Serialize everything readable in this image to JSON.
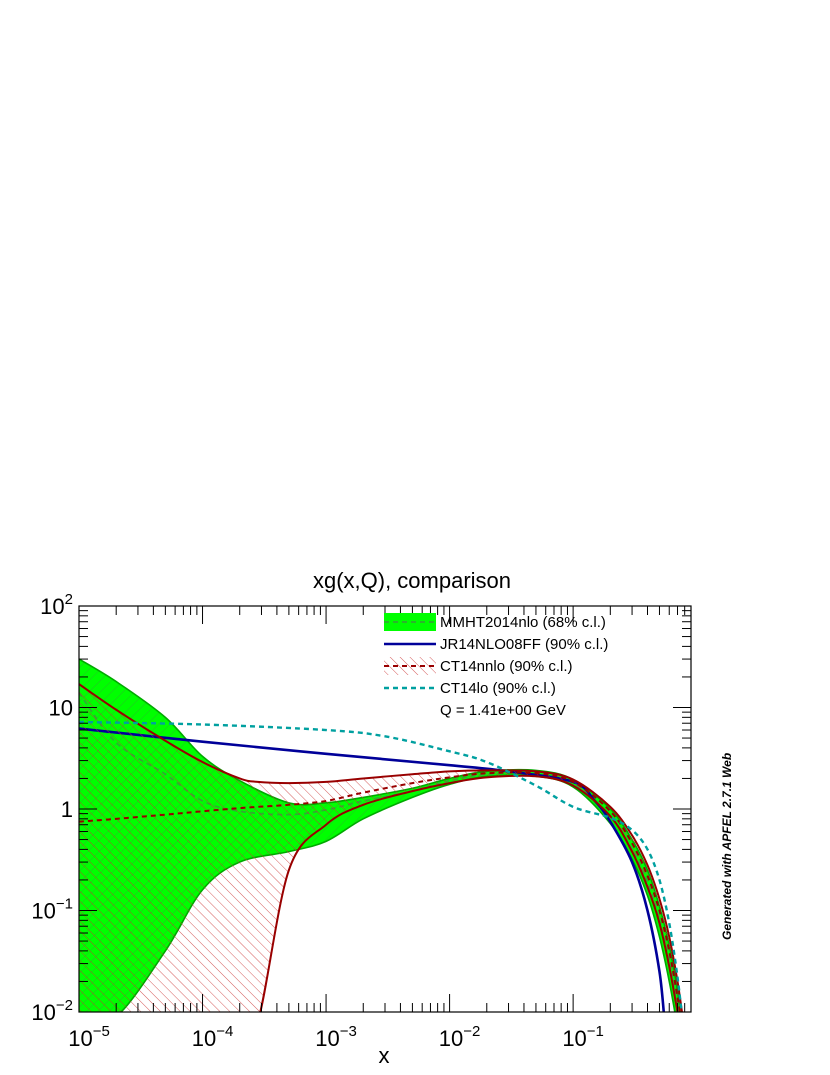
{
  "chart_data": {
    "type": "line",
    "title": "xg(x,Q), comparison",
    "xlabel": "x",
    "ylabel": "",
    "xscale": "log",
    "yscale": "log",
    "xlim": [
      1e-05,
      0.9
    ],
    "ylim": [
      0.01,
      100
    ],
    "grid": false,
    "legend_position": "top-right",
    "x_tick_labels": [
      {
        "value": 1e-05,
        "base": "10",
        "exp": "−5"
      },
      {
        "value": 0.0001,
        "base": "10",
        "exp": "−4"
      },
      {
        "value": 0.001,
        "base": "10",
        "exp": "−3"
      },
      {
        "value": 0.01,
        "base": "10",
        "exp": "−2"
      },
      {
        "value": 0.1,
        "base": "10",
        "exp": "−1"
      }
    ],
    "y_tick_labels": [
      {
        "value": 0.01,
        "base": "10",
        "exp": "−2"
      },
      {
        "value": 0.1,
        "base": "10",
        "exp": "−1"
      },
      {
        "value": 1,
        "base": "1",
        "exp": ""
      },
      {
        "value": 10,
        "base": "10",
        "exp": ""
      },
      {
        "value": 100,
        "base": "10",
        "exp": "2"
      }
    ],
    "annotation": "Q = 1.41e+00 GeV",
    "side_note": "Generated with APFEL 2.7.1 Web",
    "series": [
      {
        "name": "MMHT2014nlo (68% c.l.)",
        "style": "band",
        "fill": "#00ff00",
        "edge": "#00aa00",
        "central_color": "#33aa33",
        "x": [
          1e-05,
          2e-05,
          5e-05,
          0.0001,
          0.0002,
          0.0005,
          0.001,
          0.002,
          0.005,
          0.01,
          0.02,
          0.05,
          0.1,
          0.2,
          0.3,
          0.4,
          0.5,
          0.6,
          0.7,
          0.75
        ],
        "upper": [
          30,
          18,
          8,
          3.3,
          1.9,
          1.15,
          1.15,
          1.3,
          1.6,
          2.0,
          2.35,
          2.4,
          1.95,
          1.0,
          0.5,
          0.25,
          0.11,
          0.045,
          0.016,
          0.008
        ],
        "central": [
          14,
          4.5,
          2.2,
          1.2,
          0.95,
          0.88,
          0.98,
          1.2,
          1.5,
          1.9,
          2.2,
          2.25,
          1.8,
          0.85,
          0.4,
          0.19,
          0.08,
          0.032,
          0.011,
          0.006
        ],
        "lower": [
          0.008,
          0.009,
          0.04,
          0.16,
          0.3,
          0.38,
          0.48,
          0.8,
          1.3,
          1.75,
          2.1,
          2.1,
          1.65,
          0.72,
          0.32,
          0.14,
          0.055,
          0.02,
          0.007,
          0.004
        ]
      },
      {
        "name": "JR14NLO08FF (90% c.l.)",
        "style": "line",
        "color": "#000099",
        "x": [
          1e-05,
          0.0001,
          0.001,
          0.01,
          0.03,
          0.1,
          0.15,
          0.2,
          0.3,
          0.4,
          0.5,
          0.55
        ],
        "central": [
          6.2,
          4.6,
          3.5,
          2.7,
          2.35,
          1.85,
          1.2,
          0.75,
          0.3,
          0.1,
          0.025,
          0.008
        ]
      },
      {
        "name": "CT14nnlo (90% c.l.)",
        "style": "hatched-band",
        "color": "#990000",
        "hatch": "#cc3333",
        "x": [
          1e-05,
          2e-05,
          5e-05,
          0.0001,
          0.0002,
          0.00028,
          0.0005,
          0.001,
          0.002,
          0.005,
          0.01,
          0.02,
          0.05,
          0.1,
          0.2,
          0.3,
          0.4,
          0.5,
          0.6,
          0.7,
          0.78
        ],
        "upper": [
          17,
          9.5,
          4.7,
          2.9,
          2.0,
          1.85,
          1.8,
          1.85,
          2.0,
          2.2,
          2.35,
          2.4,
          2.35,
          1.95,
          1.05,
          0.55,
          0.28,
          0.13,
          0.055,
          0.02,
          0.008
        ],
        "central": [
          0.75,
          0.8,
          0.88,
          0.95,
          1.02,
          1.05,
          1.1,
          1.2,
          1.45,
          1.8,
          2.05,
          2.25,
          2.25,
          1.85,
          0.95,
          0.46,
          0.22,
          0.1,
          0.04,
          0.014,
          0.006
        ],
        "lower": [
          0.008,
          0.008,
          0.008,
          0.008,
          0.008,
          0.008,
          0.25,
          0.7,
          1.1,
          1.5,
          1.8,
          2.05,
          2.1,
          1.7,
          0.85,
          0.38,
          0.17,
          0.075,
          0.028,
          0.01,
          0.005
        ]
      },
      {
        "name": "CT14lo (90% c.l.)",
        "style": "dashed",
        "color": "#00a0a0",
        "x": [
          1e-05,
          0.0001,
          0.001,
          0.003,
          0.01,
          0.02,
          0.05,
          0.1,
          0.2,
          0.3,
          0.4,
          0.5,
          0.6,
          0.7,
          0.78
        ],
        "central": [
          7.2,
          6.8,
          6.0,
          5.2,
          3.7,
          2.9,
          1.7,
          1.05,
          0.82,
          0.62,
          0.4,
          0.2,
          0.075,
          0.022,
          0.007
        ]
      }
    ]
  }
}
